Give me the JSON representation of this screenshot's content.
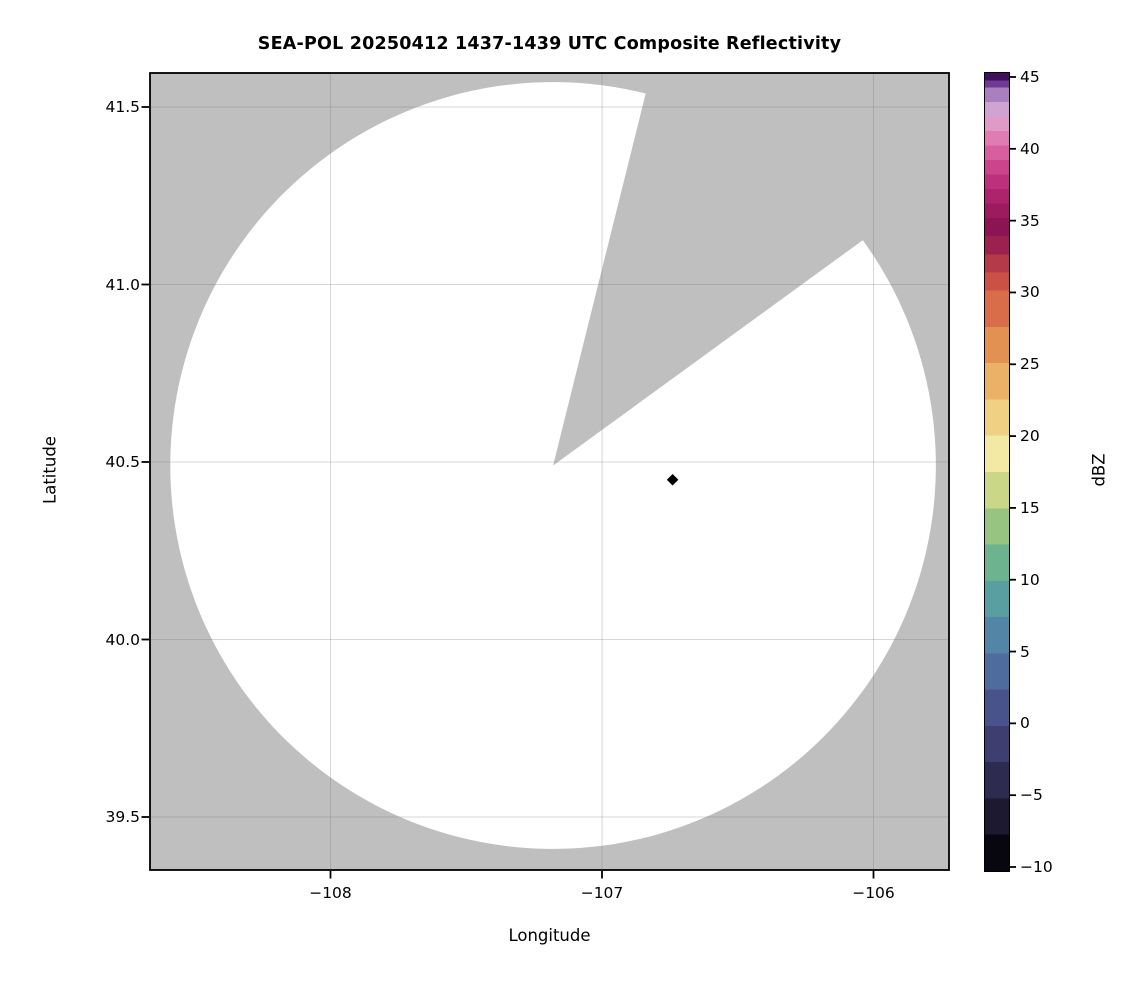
{
  "figure": {
    "title": "SEA-POL 20250412 1437-1439 UTC Composite Reflectivity",
    "xlabel": "Longitude",
    "ylabel": "Latitude"
  },
  "axes": {
    "xtick_labels": [
      "−108",
      "−107",
      "−106"
    ],
    "xtick_values": [
      -108,
      -107,
      -106
    ],
    "ytick_labels": [
      "41.5",
      "41.0",
      "40.5",
      "40.0",
      "39.5"
    ],
    "ytick_values": [
      41.5,
      41.0,
      40.5,
      40.0,
      39.5
    ]
  },
  "colorbar": {
    "label": "dBZ",
    "vmin": -10,
    "vmax": 45,
    "tick_values": [
      45,
      40,
      35,
      30,
      25,
      20,
      15,
      10,
      5,
      0,
      -5,
      -10
    ],
    "tick_labels": [
      "45",
      "40",
      "35",
      "30",
      "25",
      "20",
      "15",
      "10",
      "5",
      "0",
      "−5",
      "−10"
    ],
    "bins": [
      {
        "from": -10.0,
        "to": -7.5,
        "color": "#08060f"
      },
      {
        "from": -7.5,
        "to": -5.0,
        "color": "#1c1931"
      },
      {
        "from": -5.0,
        "to": -2.5,
        "color": "#2e2b51"
      },
      {
        "from": -2.5,
        "to": 0.0,
        "color": "#3f3e70"
      },
      {
        "from": 0.0,
        "to": 2.5,
        "color": "#49538b"
      },
      {
        "from": 2.5,
        "to": 5.0,
        "color": "#4e6c9d"
      },
      {
        "from": 5.0,
        "to": 7.5,
        "color": "#5285a6"
      },
      {
        "from": 7.5,
        "to": 10.0,
        "color": "#599ea1"
      },
      {
        "from": 10.0,
        "to": 12.5,
        "color": "#6db390"
      },
      {
        "from": 12.5,
        "to": 15.0,
        "color": "#97c581"
      },
      {
        "from": 15.0,
        "to": 17.5,
        "color": "#c9d787"
      },
      {
        "from": 17.5,
        "to": 20.0,
        "color": "#f2e9a4"
      },
      {
        "from": 20.0,
        "to": 22.5,
        "color": "#f0d083"
      },
      {
        "from": 22.5,
        "to": 25.0,
        "color": "#ebb166"
      },
      {
        "from": 25.0,
        "to": 27.5,
        "color": "#e39053"
      },
      {
        "from": 27.5,
        "to": 30.0,
        "color": "#d96c49"
      },
      {
        "from": 30.0,
        "to": 31.25,
        "color": "#cb5147"
      },
      {
        "from": 31.25,
        "to": 32.5,
        "color": "#b43a4a"
      },
      {
        "from": 32.5,
        "to": 33.75,
        "color": "#9b224e"
      },
      {
        "from": 33.75,
        "to": 35.0,
        "color": "#8c1454"
      },
      {
        "from": 35.0,
        "to": 36.0,
        "color": "#9c1a60"
      },
      {
        "from": 36.0,
        "to": 37.0,
        "color": "#ad246c"
      },
      {
        "from": 37.0,
        "to": 38.0,
        "color": "#bd317c"
      },
      {
        "from": 38.0,
        "to": 39.0,
        "color": "#cc448c"
      },
      {
        "from": 39.0,
        "to": 40.0,
        "color": "#d85f9f"
      },
      {
        "from": 40.0,
        "to": 41.0,
        "color": "#df7cb4"
      },
      {
        "from": 41.0,
        "to": 42.0,
        "color": "#e09ac8"
      },
      {
        "from": 42.0,
        "to": 43.0,
        "color": "#cfa3d2"
      },
      {
        "from": 43.0,
        "to": 44.0,
        "color": "#a97fc0"
      },
      {
        "from": 44.0,
        "to": 44.5,
        "color": "#6f3a93"
      },
      {
        "from": 44.5,
        "to": 45.0,
        "color": "#41105a"
      }
    ]
  },
  "colors": {
    "no_data_gray": "#bfbfbf",
    "coverage_white": "#ffffff",
    "grid": "rgba(110,110,110,0.28)",
    "frame": "#000000",
    "marker": "#000000"
  },
  "chart_data": {
    "type": "heatmap",
    "subtype": "radar_composite_reflectivity_map",
    "title": "SEA-POL 20250412 1437-1439 UTC Composite Reflectivity",
    "radar_name": "SEA-POL",
    "date": "20250412",
    "time_utc": "1437-1439",
    "field": "Composite Reflectivity",
    "units": "dBZ",
    "xlabel": "Longitude",
    "ylabel": "Latitude",
    "xlim": [
      -108.66,
      -105.72
    ],
    "ylim": [
      39.35,
      41.6
    ],
    "xticks": [
      -108,
      -107,
      -106
    ],
    "yticks": [
      41.5,
      41.0,
      40.5,
      40.0,
      39.5
    ],
    "grid": true,
    "colorbar": {
      "label": "dBZ",
      "position": "right",
      "range": [
        -10,
        45
      ],
      "ticks": [
        45,
        40,
        35,
        30,
        25,
        20,
        15,
        10,
        5,
        0,
        -5,
        -10
      ]
    },
    "radar_site": {
      "lon": -107.18,
      "lat": 40.49
    },
    "coverage": {
      "radius_deg_lon": 1.41,
      "radius_deg_lat": 1.08,
      "fill": "white: no echoes at or above -10 dBZ within coverage"
    },
    "blocked_sector": {
      "azimuth_start_deg": 14,
      "azimuth_end_deg": 54,
      "fill": "no-data gray wedge from radar site to edge of coverage"
    },
    "site_marker": {
      "lon": -106.74,
      "lat": 40.45,
      "shape": "diamond",
      "color": "#000000"
    },
    "background_no_data": "#bfbfbf"
  }
}
